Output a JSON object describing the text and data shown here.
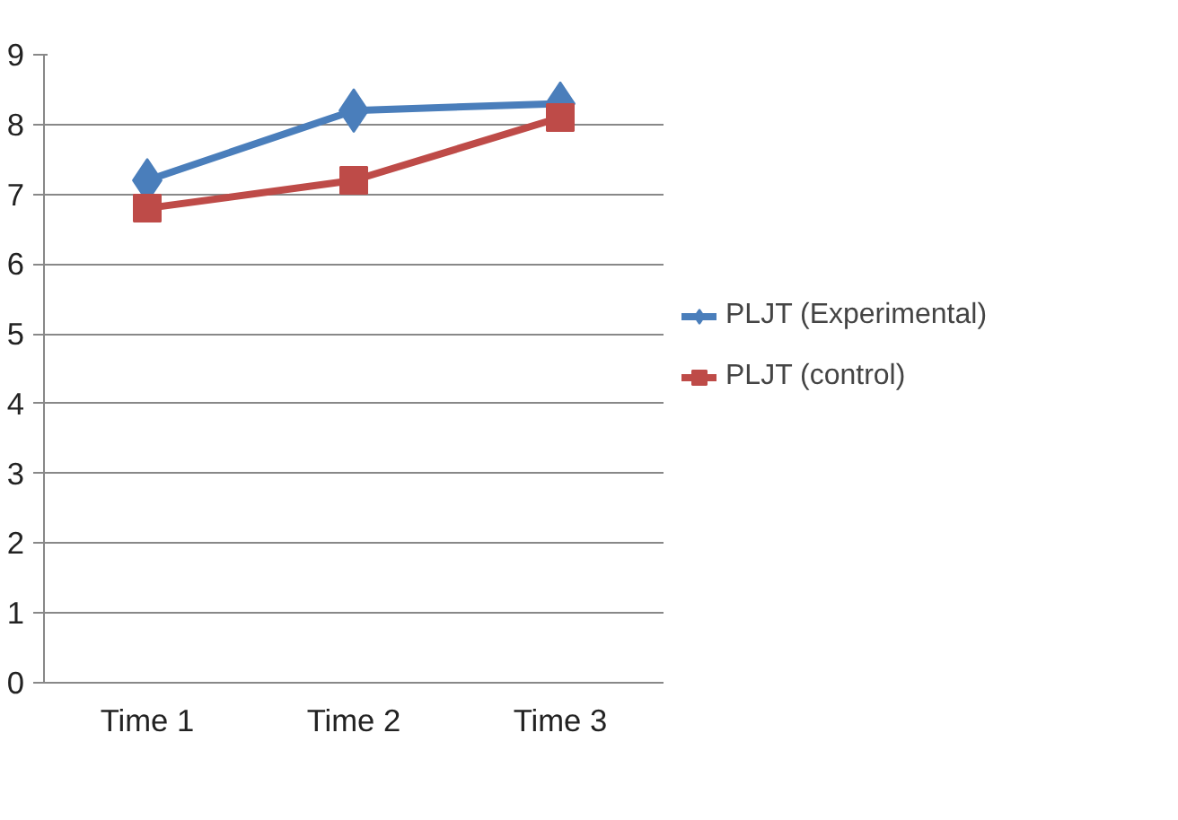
{
  "chart_data": {
    "type": "line",
    "categories": [
      "Time 1",
      "Time 2",
      "Time 3"
    ],
    "series": [
      {
        "name": "PLJT (Experimental)",
        "color": "#4a7ebb",
        "values": [
          7.2,
          8.2,
          8.3
        ],
        "marker": "diamond"
      },
      {
        "name": "PLJT (control)",
        "color": "#be4b48",
        "values": [
          6.8,
          7.2,
          8.1
        ],
        "marker": "square"
      }
    ],
    "ylim": [
      0,
      9
    ],
    "yticks": [
      0,
      1,
      2,
      3,
      4,
      5,
      6,
      7,
      8,
      9
    ],
    "grid": "y",
    "legend": "right",
    "line_style": "solid"
  }
}
